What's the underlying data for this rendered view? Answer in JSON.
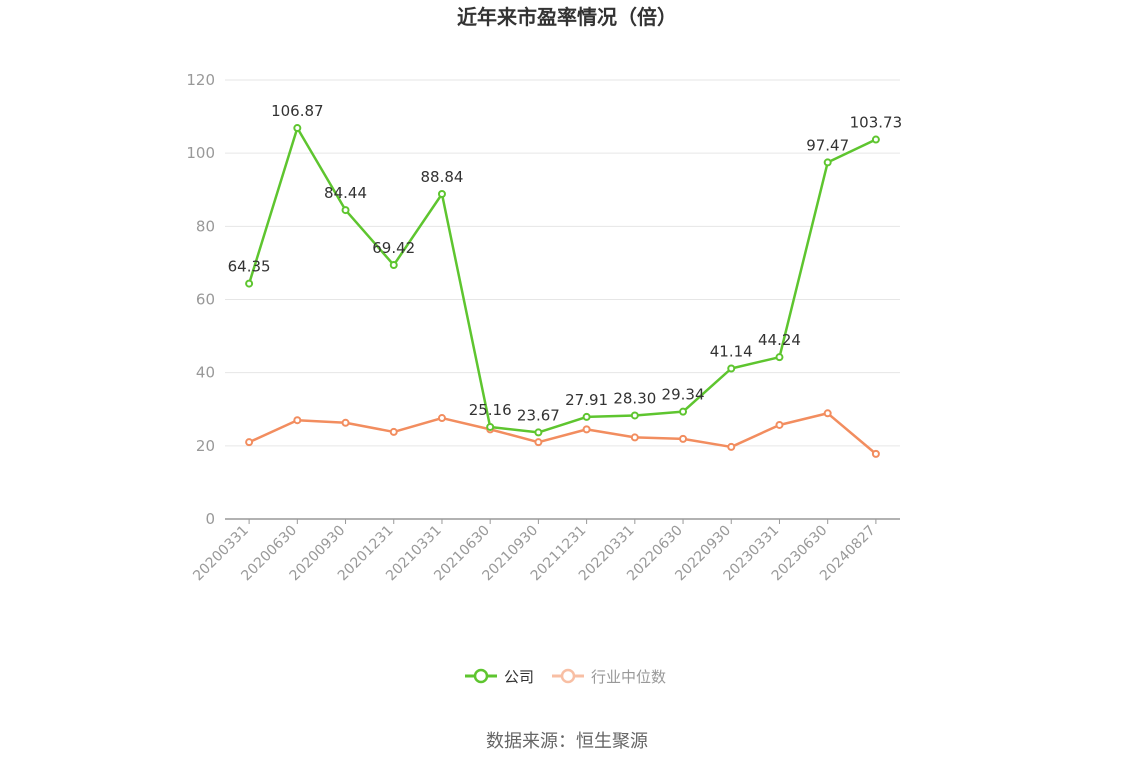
{
  "title": "近年来市盈率情况（倍）",
  "source": "数据来源：恒生聚源",
  "chart_data": {
    "type": "line",
    "title": "近年来市盈率情况（倍）",
    "xlabel": "",
    "ylabel": "",
    "categories": [
      "20200331",
      "20200630",
      "20200930",
      "20201231",
      "20210331",
      "20210630",
      "20210930",
      "20211231",
      "20220331",
      "20220630",
      "20220930",
      "20230331",
      "20230630",
      "20240827"
    ],
    "ylim": [
      0,
      120
    ],
    "yticks": [
      "0",
      "20",
      "40",
      "60",
      "80",
      "100",
      "120"
    ],
    "grid": true,
    "legend_position": "bottom-center",
    "series": [
      {
        "name": "公司",
        "color": "#5ec52f",
        "values": [
          64.35,
          106.87,
          84.44,
          69.42,
          88.84,
          25.16,
          23.67,
          27.91,
          28.3,
          29.34,
          41.14,
          44.24,
          97.47,
          103.73
        ],
        "labels": [
          "64.35",
          "106.87",
          "84.44",
          "69.42",
          "88.84",
          "25.16",
          "23.67",
          "27.91",
          "28.30",
          "29.34",
          "41.14",
          "44.24",
          "97.47",
          "103.73"
        ]
      },
      {
        "name": "行业中位数",
        "color": "#f28d5f",
        "legend_color": "#f8bfa4",
        "values": [
          21.0,
          27.0,
          26.3,
          23.8,
          27.6,
          24.5,
          21.0,
          24.5,
          22.3,
          21.9,
          19.7,
          25.7,
          28.9,
          17.8
        ]
      }
    ]
  }
}
